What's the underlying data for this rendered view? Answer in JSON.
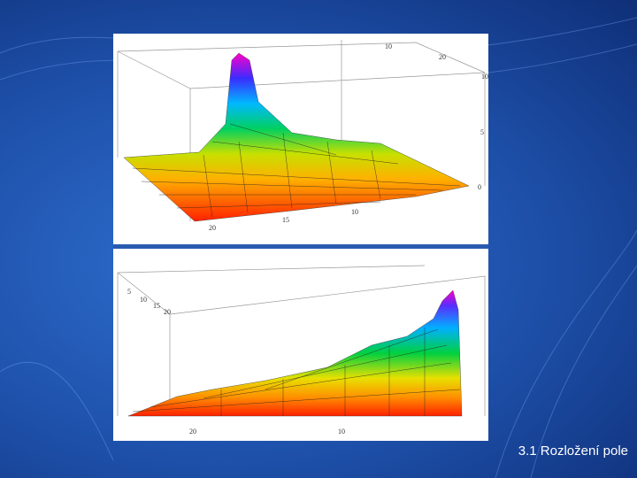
{
  "plots": [
    {
      "tick_labels": [
        "10",
        "20",
        "10",
        "5",
        "0",
        "20",
        "15",
        "10"
      ]
    },
    {
      "tick_labels": [
        "5",
        "10",
        "15",
        "20",
        "20",
        "10"
      ]
    }
  ],
  "caption": "3.1 Rozložení pole"
}
